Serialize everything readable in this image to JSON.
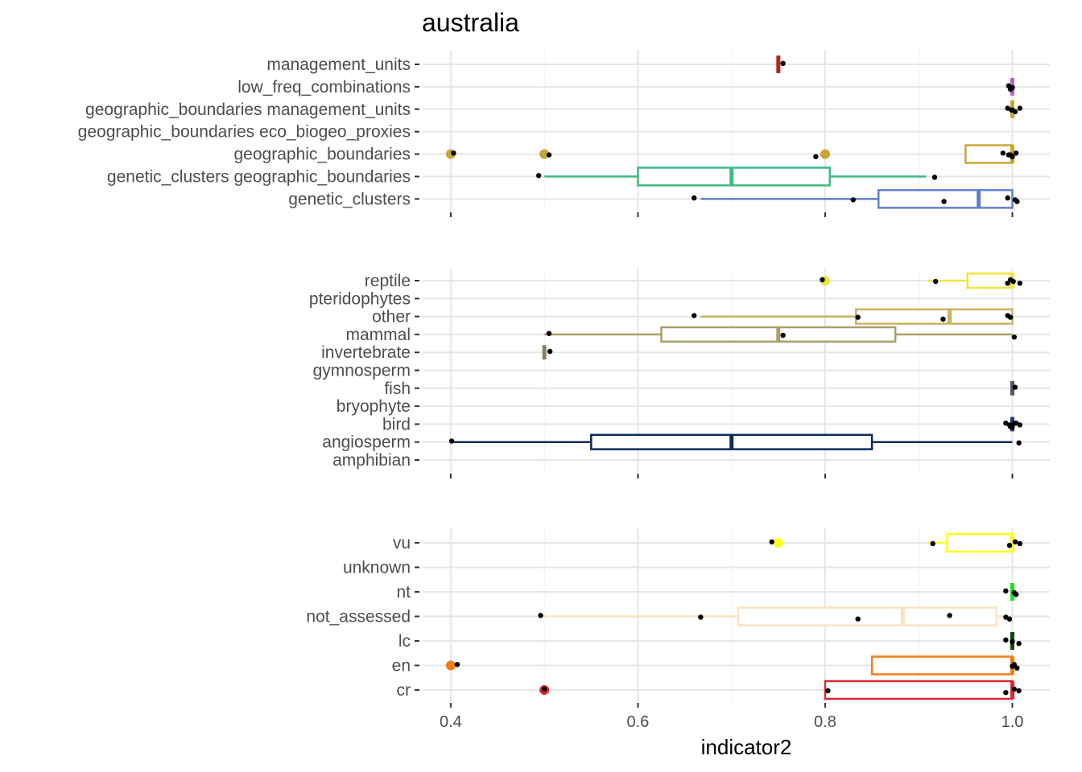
{
  "chart_data": {
    "type": "boxplot",
    "title": "australia",
    "xlabel": "indicator2",
    "xlim": [
      0.37,
      1.04
    ],
    "x_ticks": [
      0.4,
      0.6,
      0.8,
      1.0
    ],
    "x_tick_labels": [
      "0.4",
      "0.6",
      "0.8",
      "1.0"
    ],
    "grid": true,
    "facets": [
      {
        "categories": [
          {
            "label": "management_units",
            "color": "#b2261f",
            "box": [
              0.75,
              0.75,
              0.75,
              0.75,
              0.75
            ],
            "outliers": [],
            "points": [
              0.755
            ]
          },
          {
            "label": "low_freq_combinations",
            "color": "#b565c6",
            "box": [
              1.0,
              1.0,
              1.0,
              1.0,
              1.0
            ],
            "outliers": [],
            "points": [
              0.996,
              1.0,
              0.998
            ]
          },
          {
            "label": "geographic_boundaries management_units",
            "color": "#c9a534",
            "box": [
              1.0,
              1.0,
              1.0,
              1.0,
              1.0
            ],
            "outliers": [],
            "points": [
              0.995,
              1.0,
              1.003,
              1.008,
              0.999
            ]
          },
          {
            "label": "geographic_boundaries eco_biogeo_proxies",
            "color": "#c9a534",
            "box": null,
            "outliers": [],
            "points": []
          },
          {
            "label": "geographic_boundaries",
            "color": "#c9a534",
            "box": [
              0.95,
              0.95,
              1.0,
              1.0,
              1.0
            ],
            "outliers": [
              0.4,
              0.5,
              0.8
            ],
            "points": [
              0.403,
              0.505,
              0.79,
              0.99,
              0.996,
              1.0,
              1.004,
              0.998
            ]
          },
          {
            "label": "genetic_clusters geographic_boundaries",
            "color": "#3fba85",
            "box": [
              0.5,
              0.6,
              0.7,
              0.805,
              0.908
            ],
            "outliers": [],
            "points": [
              0.494,
              0.917
            ]
          },
          {
            "label": "genetic_clusters",
            "color": "#5b7fc9",
            "box": [
              0.667,
              0.857,
              0.964,
              1.0,
              1.0
            ],
            "outliers": [],
            "points": [
              0.66,
              0.83,
              0.927,
              0.995,
              1.003,
              1.005
            ]
          }
        ]
      },
      {
        "categories": [
          {
            "label": "reptile",
            "color": "#f2e340",
            "box": [
              0.91,
              0.952,
              1.0,
              1.0,
              1.0
            ],
            "outliers": [
              0.8
            ],
            "points": [
              0.797,
              0.918,
              0.995,
              0.998,
              1.001,
              1.008
            ]
          },
          {
            "label": "pteridophytes",
            "color": "#ccbb66",
            "box": null,
            "outliers": [],
            "points": []
          },
          {
            "label": "other",
            "color": "#c9b262",
            "box": [
              0.667,
              0.833,
              0.933,
              1.0,
              1.0
            ],
            "outliers": [],
            "points": [
              0.66,
              0.835,
              0.926,
              0.995,
              0.998
            ]
          },
          {
            "label": "mammal",
            "color": "#ab9f6a",
            "box": [
              0.5,
              0.625,
              0.75,
              0.875,
              1.0
            ],
            "outliers": [],
            "points": [
              0.505,
              0.755,
              1.002
            ]
          },
          {
            "label": "invertebrate",
            "color": "#8a815e",
            "box": [
              0.5,
              0.5,
              0.5,
              0.5,
              0.5
            ],
            "outliers": [],
            "points": [
              0.506
            ]
          },
          {
            "label": "gymnosperm",
            "color": "#666666",
            "box": null,
            "outliers": [],
            "points": []
          },
          {
            "label": "fish",
            "color": "#555566",
            "box": [
              1.0,
              1.0,
              1.0,
              1.0,
              1.0
            ],
            "outliers": [],
            "points": [
              1.003
            ]
          },
          {
            "label": "bryophyte",
            "color": "#333355",
            "box": null,
            "outliers": [],
            "points": []
          },
          {
            "label": "bird",
            "color": "#24346a",
            "box": [
              1.0,
              1.0,
              1.0,
              1.0,
              1.0
            ],
            "outliers": [],
            "points": [
              0.993,
              0.997,
              1.0,
              1.004,
              1.008,
              0.998,
              1.002
            ]
          },
          {
            "label": "angiosperm",
            "color": "#0f2a5c",
            "box": [
              0.4,
              0.55,
              0.7,
              0.85,
              1.0
            ],
            "outliers": [],
            "points": [
              0.401,
              1.007
            ]
          },
          {
            "label": "amphibian",
            "color": "#0f2a5c",
            "box": null,
            "outliers": [],
            "points": []
          }
        ]
      },
      {
        "categories": [
          {
            "label": "vu",
            "color": "#ffff1a",
            "box": [
              0.91,
              0.93,
              1.0,
              1.0,
              1.0
            ],
            "outliers": [
              0.75
            ],
            "points": [
              0.743,
              0.915,
              0.997,
              1.003,
              1.008
            ]
          },
          {
            "label": "unknown",
            "color": "#cccccc",
            "box": null,
            "outliers": [],
            "points": []
          },
          {
            "label": "nt",
            "color": "#19e619",
            "box": [
              1.0,
              1.0,
              1.0,
              1.0,
              1.0
            ],
            "outliers": [],
            "points": [
              0.993,
              1.002,
              1.004
            ]
          },
          {
            "label": "not_assessed",
            "color": "#f8e2c2",
            "box": [
              0.5,
              0.707,
              0.883,
              0.983,
              1.0
            ],
            "outliers": [],
            "points": [
              0.496,
              0.667,
              0.835,
              0.933,
              0.993,
              0.997
            ]
          },
          {
            "label": "lc",
            "color": "#0a4a0a",
            "box": [
              1.0,
              1.0,
              1.0,
              1.0,
              1.0
            ],
            "outliers": [],
            "points": [
              0.993,
              1.0,
              1.007
            ]
          },
          {
            "label": "en",
            "color": "#f27d19",
            "box": [
              0.85,
              0.85,
              1.0,
              1.0,
              1.0
            ],
            "outliers": [
              0.4
            ],
            "points": [
              0.407,
              1.0,
              1.005,
              1.002
            ]
          },
          {
            "label": "cr",
            "color": "#dd2733",
            "box": [
              0.8,
              0.8,
              1.0,
              1.0,
              1.0
            ],
            "outliers": [
              0.5
            ],
            "points": [
              0.5,
              0.803,
              0.993,
              1.002,
              1.007
            ]
          }
        ]
      }
    ]
  }
}
